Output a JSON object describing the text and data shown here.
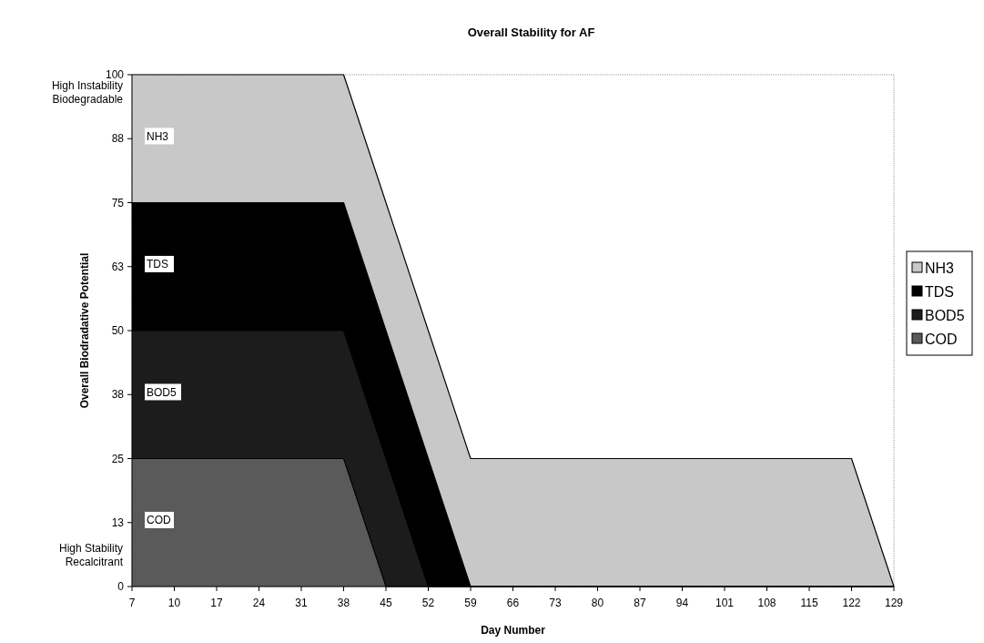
{
  "chart_data": {
    "type": "area",
    "title": "Overall Stability for AF",
    "xlabel": "Day Number",
    "ylabel": "Overall Biodradative Potential",
    "categories": [
      "7",
      "10",
      "17",
      "24",
      "31",
      "38",
      "45",
      "52",
      "59",
      "66",
      "73",
      "80",
      "87",
      "94",
      "101",
      "108",
      "115",
      "122",
      "129"
    ],
    "series": [
      {
        "name": "NH3",
        "color": "#c8c8c8",
        "values": [
          100,
          100,
          100,
          100,
          100,
          100,
          75,
          50,
          25,
          25,
          25,
          25,
          25,
          25,
          25,
          25,
          25,
          25,
          0
        ]
      },
      {
        "name": "TDS",
        "color": "#000000",
        "values": [
          75,
          75,
          75,
          75,
          75,
          75,
          50,
          25,
          0,
          0,
          0,
          0,
          0,
          0,
          0,
          0,
          0,
          0,
          0
        ]
      },
      {
        "name": "BOD5",
        "color": "#1c1c1c",
        "values": [
          50,
          50,
          50,
          50,
          50,
          50,
          25,
          0,
          0,
          0,
          0,
          0,
          0,
          0,
          0,
          0,
          0,
          0,
          0
        ]
      },
      {
        "name": "COD",
        "color": "#5a5a5a",
        "values": [
          25,
          25,
          25,
          25,
          25,
          25,
          0,
          0,
          0,
          0,
          0,
          0,
          0,
          0,
          0,
          0,
          0,
          0,
          0
        ]
      }
    ],
    "ylim": [
      0,
      100
    ],
    "yticks": [
      0,
      {
        "value": 12.5,
        "label": "13"
      },
      25,
      {
        "value": 37.5,
        "label": "38"
      },
      50,
      {
        "value": 62.5,
        "label": "63"
      },
      75,
      {
        "value": 87.5,
        "label": "88"
      },
      100
    ],
    "legend": "right",
    "annotations": [
      "High Instability\nBiodegradable",
      "High Stability\nRecalcitrant",
      {
        "text": "NH3",
        "x": "7",
        "y": 88
      },
      {
        "text": "TDS",
        "x": "7",
        "y": 63
      },
      {
        "text": "BOD5",
        "x": "7",
        "y": 38
      },
      {
        "text": "COD",
        "x": "7",
        "y": 13
      }
    ]
  }
}
